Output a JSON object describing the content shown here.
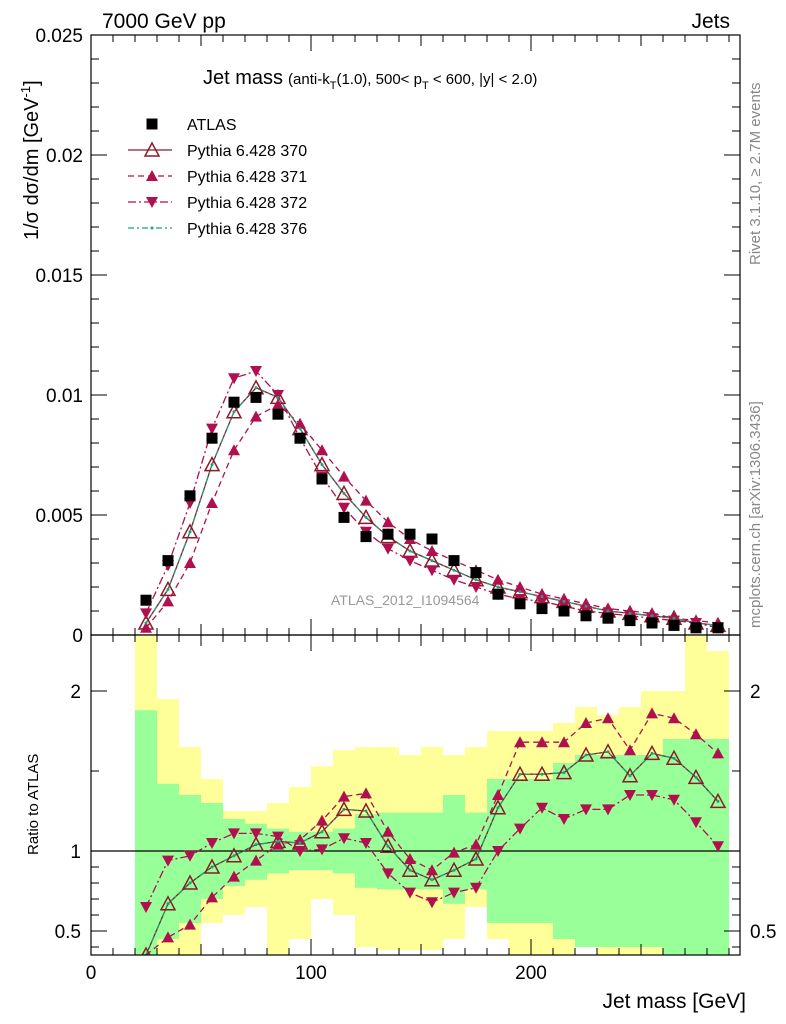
{
  "header": {
    "left": "7000 GeV pp",
    "right": "Jets"
  },
  "side_labels": {
    "rivet": "Rivet 3.1.10, ≥ 2.7M events",
    "mcplots": "mcplots.cern.ch [arXiv:1306.3436]"
  },
  "colors": {
    "data": "#000000",
    "p370": "#8b1a2b",
    "p371": "#b0104e",
    "p372": "#b0104e",
    "p376": "#1aa37a",
    "band_inner": "#99ff99",
    "band_outer": "#ffff99"
  },
  "chart_data": [
    {
      "type": "scatter",
      "title": "Jet mass",
      "title_detail": {
        "prefix": "(anti-k",
        "prefix_sub": "T",
        "mid": "(1.0), 500< p",
        "mid_sub": "T",
        "suffix": " < 600, |y| < 2.0)"
      },
      "ylabel": "1/σ dσ/dm [GeV",
      "ylabel_sup": "-1",
      "ylabel_end": "]",
      "watermark": "ATLAS_2012_I1094564",
      "ylim": [
        0,
        0.025
      ],
      "xlim": [
        0,
        295
      ],
      "yticks": [
        "0",
        "0.005",
        "0.01",
        "0.015",
        "0.02",
        "0.025"
      ],
      "ytick_values": [
        0,
        0.005,
        0.01,
        0.015,
        0.02,
        0.025
      ],
      "x": [
        25,
        35,
        45,
        55,
        65,
        75,
        85,
        95,
        105,
        115,
        125,
        135,
        145,
        155,
        165,
        175,
        185,
        195,
        205,
        215,
        225,
        235,
        245,
        255,
        265,
        275,
        285
      ],
      "series": [
        {
          "name": "ATLAS",
          "marker": "square",
          "values": [
            0.00145,
            0.0031,
            0.0058,
            0.0082,
            0.0097,
            0.0099,
            0.0092,
            0.0082,
            0.0065,
            0.0049,
            0.0041,
            0.0042,
            0.0042,
            0.004,
            0.0031,
            0.0026,
            0.0017,
            0.0013,
            0.0011,
            0.001,
            0.0008,
            0.0007,
            0.0006,
            0.0005,
            0.0004,
            0.0003,
            0.0003
          ]
        },
        {
          "name": "Pythia 6.428 370",
          "marker": "open-triangle",
          "line": "solid",
          "values": [
            0.0005,
            0.0019,
            0.0043,
            0.0071,
            0.0093,
            0.0103,
            0.0099,
            0.0086,
            0.0071,
            0.0059,
            0.0049,
            0.0041,
            0.0035,
            0.0031,
            0.0027,
            0.0023,
            0.002,
            0.0018,
            0.0016,
            0.0014,
            0.0012,
            0.001,
            0.0009,
            0.0008,
            0.0007,
            0.0005,
            0.0004
          ]
        },
        {
          "name": "Pythia 6.428 371",
          "marker": "triangle-up",
          "line": "dashed",
          "values": [
            0.0003,
            0.0014,
            0.003,
            0.0055,
            0.0077,
            0.0091,
            0.0096,
            0.0088,
            0.0077,
            0.0066,
            0.0056,
            0.0047,
            0.004,
            0.0035,
            0.0031,
            0.0027,
            0.0023,
            0.002,
            0.0017,
            0.0015,
            0.0013,
            0.0011,
            0.001,
            0.0009,
            0.0007,
            0.0006,
            0.0005
          ]
        },
        {
          "name": "Pythia 6.428 372",
          "marker": "triangle-down",
          "line": "dash-dot",
          "values": [
            0.0009,
            0.0029,
            0.0055,
            0.0086,
            0.0107,
            0.011,
            0.01,
            0.0082,
            0.0066,
            0.0053,
            0.0043,
            0.0036,
            0.0031,
            0.0027,
            0.0023,
            0.002,
            0.0017,
            0.0015,
            0.0014,
            0.0012,
            0.001,
            0.0009,
            0.0008,
            0.0007,
            0.0006,
            0.0005,
            0.0003
          ]
        },
        {
          "name": "Pythia 6.428 376",
          "marker": "dot",
          "line": "dash-dot",
          "values": [
            0.0005,
            0.0019,
            0.0043,
            0.0071,
            0.0093,
            0.0103,
            0.0099,
            0.0086,
            0.0071,
            0.0059,
            0.0049,
            0.0041,
            0.0035,
            0.0031,
            0.0027,
            0.0023,
            0.002,
            0.0018,
            0.0016,
            0.0014,
            0.0012,
            0.001,
            0.0009,
            0.0008,
            0.0007,
            0.0005,
            0.0004
          ]
        }
      ]
    },
    {
      "type": "line",
      "ylabel": "Ratio to ATLAS",
      "xlabel": "Jet mass [GeV]",
      "ylim": [
        0.35,
        2.35
      ],
      "xlim": [
        0,
        295
      ],
      "yticks": [
        "0.5",
        "1",
        "2"
      ],
      "ytick_values": [
        0.5,
        1,
        2
      ],
      "xticks": [
        "0",
        "100",
        "200"
      ],
      "xtick_values": [
        0,
        100,
        200
      ],
      "bin_edges": [
        20,
        30,
        40,
        50,
        60,
        70,
        80,
        90,
        100,
        110,
        120,
        130,
        140,
        150,
        160,
        170,
        180,
        190,
        200,
        210,
        220,
        230,
        240,
        250,
        260,
        270,
        280,
        290
      ],
      "band_inner": {
        "low": [
          0.0,
          0.45,
          0.55,
          0.7,
          0.78,
          0.82,
          0.86,
          0.88,
          0.88,
          0.86,
          0.77,
          0.76,
          0.76,
          0.76,
          0.67,
          0.76,
          0.55,
          0.55,
          0.55,
          0.45,
          0.4,
          0.4,
          0.4,
          0.4,
          0.3,
          0.3,
          0.3
        ],
        "high": [
          1.88,
          1.42,
          1.35,
          1.3,
          1.2,
          1.17,
          1.14,
          1.12,
          1.12,
          1.14,
          1.23,
          1.24,
          1.24,
          1.24,
          1.35,
          1.24,
          1.45,
          1.45,
          1.45,
          1.55,
          1.6,
          1.6,
          1.6,
          1.6,
          1.7,
          1.7,
          1.7
        ]
      },
      "band_outer": {
        "low": [
          0.0,
          0.0,
          0.0,
          0.55,
          0.6,
          0.65,
          0.3,
          0.45,
          0.7,
          0.6,
          0.4,
          0.38,
          0.38,
          0.38,
          0.45,
          0.65,
          0.45,
          0.25,
          0.3,
          0.3,
          0.55,
          0.3,
          0.3,
          0.3,
          0.0,
          0.3,
          0.0
        ],
        "high": [
          2.35,
          1.95,
          1.65,
          1.45,
          1.25,
          1.25,
          1.3,
          1.4,
          1.53,
          1.63,
          1.65,
          1.65,
          1.6,
          1.65,
          1.6,
          1.65,
          1.75,
          1.75,
          1.75,
          1.8,
          1.9,
          1.85,
          1.9,
          2.0,
          2.0,
          2.35,
          2.25
        ]
      },
      "x": [
        25,
        35,
        45,
        55,
        65,
        75,
        85,
        95,
        105,
        115,
        125,
        135,
        145,
        155,
        165,
        175,
        185,
        195,
        205,
        215,
        225,
        235,
        245,
        255,
        265,
        275,
        285
      ],
      "series": [
        {
          "name": "Pythia 6.428 370",
          "values": [
            0.35,
            0.67,
            0.8,
            0.9,
            0.97,
            1.04,
            1.06,
            1.05,
            1.12,
            1.26,
            1.25,
            1.03,
            0.88,
            0.82,
            0.88,
            0.95,
            1.27,
            1.48,
            1.48,
            1.49,
            1.6,
            1.62,
            1.47,
            1.61,
            1.58,
            1.46,
            1.31
          ]
        },
        {
          "name": "Pythia 6.428 371",
          "values": [
            0.2,
            0.46,
            0.54,
            0.71,
            0.84,
            0.94,
            1.04,
            1.07,
            1.19,
            1.34,
            1.36,
            1.12,
            0.95,
            0.88,
            0.99,
            1.04,
            1.35,
            1.68,
            1.68,
            1.68,
            1.8,
            1.83,
            1.63,
            1.86,
            1.83,
            1.73,
            1.61
          ]
        },
        {
          "name": "Pythia 6.428 372",
          "values": [
            0.65,
            0.94,
            0.97,
            1.05,
            1.11,
            1.11,
            1.09,
            1.0,
            1.01,
            1.08,
            1.05,
            0.86,
            0.74,
            0.68,
            0.74,
            0.77,
            1.0,
            1.14,
            1.27,
            1.2,
            1.26,
            1.26,
            1.35,
            1.35,
            1.32,
            1.18,
            1.03
          ]
        },
        {
          "name": "Pythia 6.428 376",
          "values": [
            0.35,
            0.67,
            0.8,
            0.9,
            0.97,
            1.04,
            1.06,
            1.05,
            1.12,
            1.26,
            1.25,
            1.03,
            0.88,
            0.82,
            0.88,
            0.95,
            1.27,
            1.48,
            1.48,
            1.49,
            1.6,
            1.62,
            1.47,
            1.61,
            1.58,
            1.46,
            1.31
          ]
        }
      ]
    }
  ]
}
